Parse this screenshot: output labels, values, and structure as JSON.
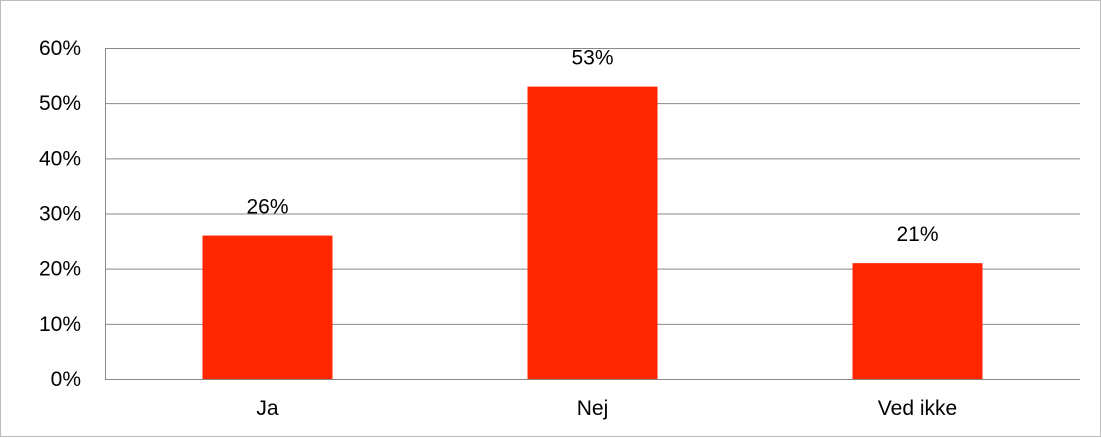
{
  "chart_data": {
    "type": "bar",
    "categories": [
      "Ja",
      "Nej",
      "Ved ikke"
    ],
    "values": [
      26,
      53,
      21
    ],
    "value_labels": [
      "26%",
      "53%",
      "21%"
    ],
    "y_ticks": [
      0,
      10,
      20,
      30,
      40,
      50,
      60
    ],
    "y_tick_labels": [
      "0%",
      "10%",
      "20%",
      "30%",
      "40%",
      "50%",
      "60%"
    ],
    "ylim": [
      0,
      60
    ],
    "grid": true,
    "legend": "none",
    "bar_color": "#ff2600",
    "grid_color": "#888888"
  }
}
